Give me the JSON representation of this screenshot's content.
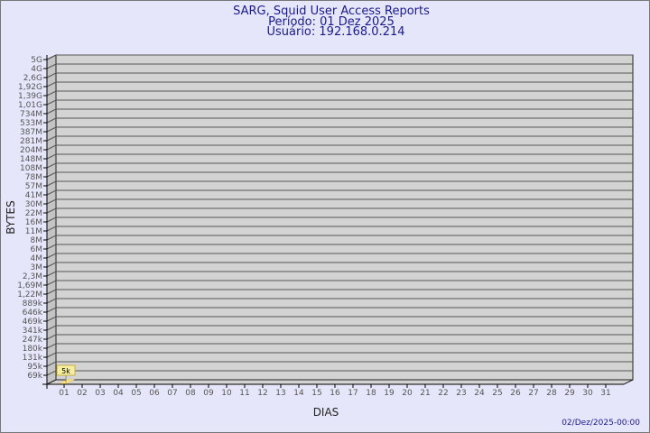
{
  "header": {
    "title": "SARG, Squid User Access Reports",
    "period": "Período: 01 Dez 2025",
    "user": "Usuário: 192.168.0.214"
  },
  "footer": {
    "timestamp": "02/Dez/2025-00:00"
  },
  "colors": {
    "background": "#e6e6fa",
    "plot_wall": "#d3d3d3",
    "bar": "#fde98a",
    "title": "#1a1a8c"
  },
  "chart_data": {
    "type": "bar",
    "title": "SARG, Squid User Access Reports",
    "xlabel": "DIAS",
    "ylabel": "BYTES",
    "y_scale": "log",
    "grid": true,
    "y_tick_labels": [
      "5G",
      "4G",
      "2,6G",
      "1,92G",
      "1,39G",
      "1,01G",
      "734M",
      "533M",
      "387M",
      "281M",
      "204M",
      "148M",
      "108M",
      "78M",
      "57M",
      "41M",
      "30M",
      "22M",
      "16M",
      "11M",
      "8M",
      "6M",
      "4M",
      "3M",
      "2,3M",
      "1,69M",
      "1,22M",
      "889k",
      "646k",
      "469k",
      "341k",
      "247k",
      "180k",
      "131k",
      "95k",
      "69k"
    ],
    "categories": [
      "01",
      "02",
      "03",
      "04",
      "05",
      "06",
      "07",
      "08",
      "09",
      "10",
      "11",
      "12",
      "13",
      "14",
      "15",
      "16",
      "17",
      "18",
      "19",
      "20",
      "21",
      "22",
      "23",
      "24",
      "25",
      "26",
      "27",
      "28",
      "29",
      "30",
      "31"
    ],
    "values": [
      5000,
      0,
      0,
      0,
      0,
      0,
      0,
      0,
      0,
      0,
      0,
      0,
      0,
      0,
      0,
      0,
      0,
      0,
      0,
      0,
      0,
      0,
      0,
      0,
      0,
      0,
      0,
      0,
      0,
      0,
      0
    ],
    "data_labels": [
      "5k"
    ]
  }
}
